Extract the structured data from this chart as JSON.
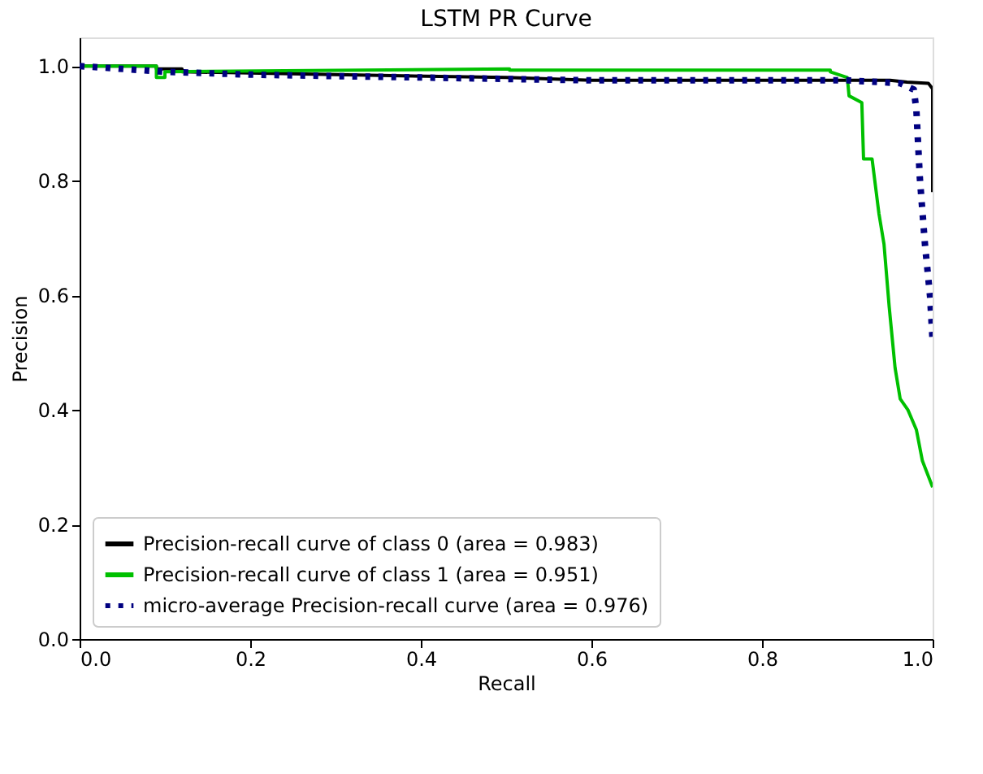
{
  "chart_data": {
    "type": "line",
    "title": "LSTM PR Curve",
    "xlabel": "Recall",
    "ylabel": "Precision",
    "xlim": [
      0,
      1
    ],
    "ylim": [
      0,
      1.05
    ],
    "xticks": [
      {
        "value": 0,
        "label": "0.0"
      },
      0.2,
      0.4,
      0.6,
      0.8,
      {
        "value": 1,
        "label": "1.0"
      }
    ],
    "yticks": [
      {
        "value": 0,
        "label": "0.0"
      },
      0.2,
      0.4,
      0.6,
      0.8,
      {
        "value": 1,
        "label": "1.0"
      }
    ],
    "grid": false,
    "legend": "bottom left",
    "marker": "none",
    "series": [
      {
        "name": "Precision-recall curve of class 0 (area = 0.983)",
        "color": "#000000",
        "line_style": "solid",
        "x": [
          0,
          0.09,
          0.09,
          0.12,
          0.12,
          0.3,
          0.5,
          0.6,
          0.8,
          0.95,
          0.97,
          0.995,
          1.0,
          1.0
        ],
        "values": [
          1.0,
          1.0,
          0.995,
          0.995,
          0.99,
          0.985,
          0.98,
          0.975,
          0.975,
          0.975,
          0.972,
          0.97,
          0.96,
          0.78
        ]
      },
      {
        "name": "Precision-recall curve of class 1 (area = 0.951)",
        "color": "#00c000",
        "line_style": "solid",
        "x": [
          0,
          0.09,
          0.09,
          0.1,
          0.1,
          0.504,
          0.504,
          0.88,
          0.88,
          0.9,
          0.902,
          0.917,
          0.919,
          0.929,
          0.937,
          0.943,
          0.949,
          0.956,
          0.962,
          0.971,
          0.981,
          0.988,
          1.0
        ],
        "values": [
          1.0,
          1.0,
          0.98,
          0.98,
          0.99,
          0.995,
          0.993,
          0.993,
          0.99,
          0.98,
          0.948,
          0.936,
          0.838,
          0.838,
          0.743,
          0.689,
          0.581,
          0.473,
          0.419,
          0.4,
          0.365,
          0.311,
          0.265
        ]
      },
      {
        "name": "micro-average Precision-recall curve (area = 0.976)",
        "color": "#000080",
        "line_style": "dotted",
        "x": [
          0,
          0.1,
          0.2,
          0.4,
          0.6,
          0.8,
          0.9,
          0.962,
          0.978,
          0.981,
          0.985,
          0.991,
          0.997,
          1.0
        ],
        "values": [
          1.0,
          0.99,
          0.985,
          0.98,
          0.975,
          0.975,
          0.975,
          0.97,
          0.959,
          0.922,
          0.805,
          0.689,
          0.598,
          0.52
        ]
      }
    ]
  }
}
